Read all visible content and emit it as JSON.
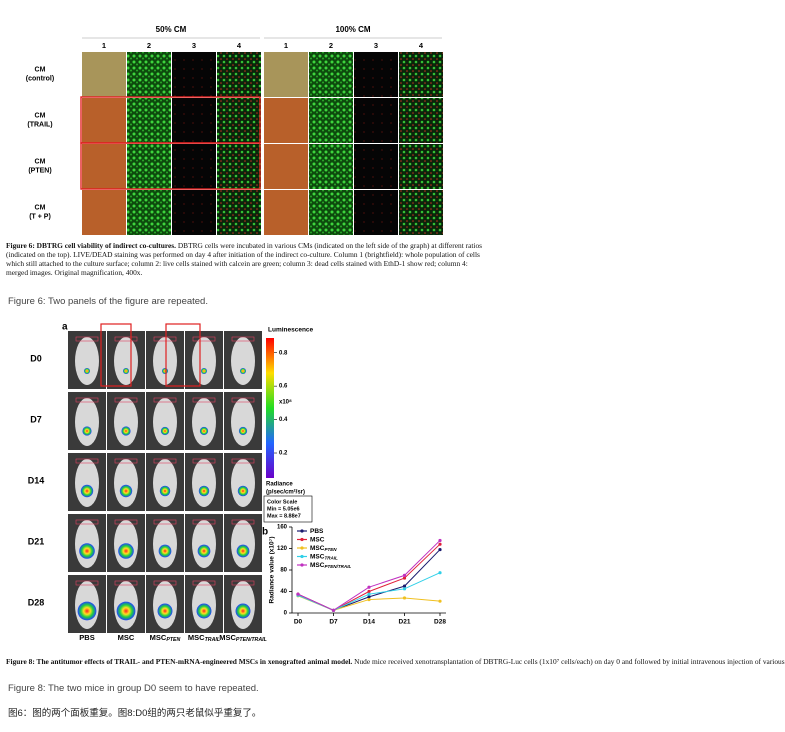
{
  "figure6": {
    "group_labels": [
      "50% CM",
      "100% CM"
    ],
    "column_labels": [
      "1",
      "2",
      "3",
      "4"
    ],
    "row_labels": [
      [
        "CM",
        "(control)"
      ],
      [
        "CM",
        "(TRAIL)"
      ],
      [
        "CM",
        "(PTEN)"
      ],
      [
        "CM",
        "(T + P)"
      ]
    ],
    "caption_title": "Figure 6: DBTRG cell viability of indirect co-cultures.",
    "caption_text": "DBTRG cells were incubated in various CMs (indicated on the left side of the graph) at different ratios (indicated on the top). LIVE/DEAD staining was performed on day 4 after initiation of the indirect co-culture. Column 1 (brightfield): whole population of cells which still attached to the culture surface; column 2: live cells stained with calcein are green; column 3: dead cells stained with EthD-1 show red; column 4: merged images. Original magnification, 400x."
  },
  "note6": "Figure 6: Two panels of the figure are repeated.",
  "figure8": {
    "panel_a": "a",
    "panel_b": "b",
    "row_labels": [
      "D0",
      "D7",
      "D14",
      "D21",
      "D28"
    ],
    "column_labels": [
      {
        "text": "PBS"
      },
      {
        "text": "MSC"
      },
      {
        "text": "MSC",
        "sub": "PTEN"
      },
      {
        "text": "MSC",
        "sub": "TRAIL"
      },
      {
        "text": "MSC",
        "sub": "PTEN/TRAIL"
      }
    ],
    "colorbar": {
      "title": "Luminescence",
      "lim": [
        0.0505,
        0.888
      ],
      "ticks": [
        0.8,
        0.6,
        0.4,
        0.2
      ],
      "multiplier": "x10⁸",
      "unit": [
        "Radiance",
        "(p/sec/cm²/sr)"
      ],
      "scale_title": "Color Scale",
      "min": "Min = 5.05e6",
      "max": "Max = 8.88e7"
    },
    "caption_title": "Figure 8: The antitumor effects of TRAIL- and PTEN-mRNA-engineered MSCs in xenografted animal model.",
    "caption_text": "Nude mice received xenotransplantation of DBTRG-Luc cells (1x10⁷ cells/each) on day 0 and followed by initial intravenous injection of various"
  },
  "chart_data": {
    "type": "line",
    "y_label": "Radiance value (x10⁷)",
    "categories": [
      "D0",
      "D7",
      "D14",
      "D21",
      "D28"
    ],
    "ylim": [
      0,
      160
    ],
    "yticks": [
      0,
      40,
      80,
      120,
      160
    ],
    "series": [
      {
        "name": "PBS",
        "color": "#1a1a6e",
        "values": [
          35,
          5,
          30,
          50,
          118
        ]
      },
      {
        "name": "MSC",
        "color": "#e0203a",
        "values": [
          35,
          5,
          40,
          65,
          128
        ]
      },
      {
        "name": "MSC",
        "sub": "PTEN",
        "color": "#f0c020",
        "values": [
          32,
          5,
          25,
          28,
          22
        ]
      },
      {
        "name": "MSC",
        "sub": "TRAIL",
        "color": "#30d0e8",
        "values": [
          33,
          5,
          35,
          45,
          75
        ]
      },
      {
        "name": "MSC",
        "sub": "PTEN/TRAIL",
        "color": "#c030c0",
        "values": [
          35,
          5,
          48,
          70,
          135
        ]
      }
    ]
  },
  "note8": "Figure 8: The two mice in group D0 seem to have repeated.",
  "note_zh": "图6：图的两个面板重复。图8:D0组的两只老鼠似乎重复了。"
}
